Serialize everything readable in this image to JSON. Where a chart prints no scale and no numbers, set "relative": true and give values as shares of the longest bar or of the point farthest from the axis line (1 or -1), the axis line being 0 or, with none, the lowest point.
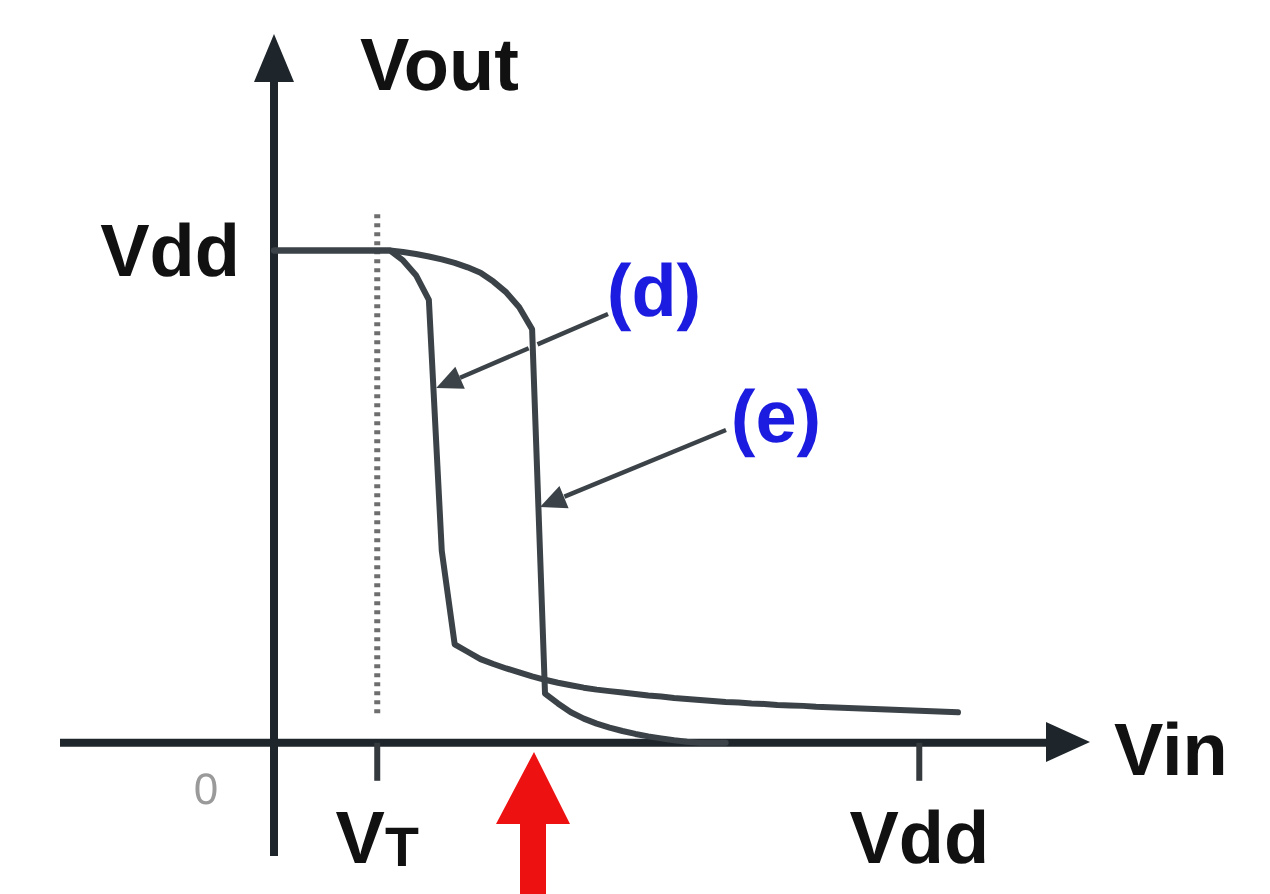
{
  "chart_data": {
    "type": "line",
    "relative": true,
    "xlabel": "Vin",
    "ylabel": "Vout",
    "categories": [
      null,
      null,
      null,
      null,
      null,
      null,
      null,
      null,
      "V$_{T}$",
      null,
      null,
      null,
      null,
      null,
      null,
      null,
      null,
      null,
      null,
      null,
      null,
      null,
      null,
      null,
      null,
      null,
      null,
      null,
      null,
      null,
      null,
      null,
      null,
      null,
      null,
      null,
      null,
      null,
      null,
      null,
      null,
      null,
      null,
      null,
      null,
      null,
      null,
      null,
      null,
      null,
      "Vdd",
      null,
      null,
      null
    ],
    "series": [
      {
        "name": "(d)",
        "color": "#3c4348",
        "values": [
          1,
          1,
          1,
          1,
          1,
          1,
          1,
          1,
          1,
          1,
          0.98,
          0.95,
          0.9,
          0.39,
          0.2,
          0.185,
          0.17,
          0.16,
          0.151,
          0.143,
          0.135,
          0.128,
          0.122,
          0.117,
          0.112,
          0.108,
          0.105,
          0.102,
          0.099,
          0.096,
          0.094,
          0.091,
          0.089,
          0.087,
          0.085,
          0.083,
          0.082,
          0.08,
          0.079,
          0.077,
          0.076,
          0.075,
          0.073,
          0.072,
          0.071,
          0.07,
          0.069,
          0.068,
          0.067,
          0.066,
          0.065,
          0.064,
          0.063,
          0.062
        ]
      },
      {
        "name": "(e)",
        "color": "#3c4348",
        "values": [
          1,
          1,
          1,
          1,
          1,
          1,
          1,
          1,
          1,
          1,
          0.997,
          0.993,
          0.988,
          0.982,
          0.975,
          0.966,
          0.955,
          0.937,
          0.915,
          0.885,
          0.84,
          0.1,
          0.08,
          0.062,
          0.049,
          0.039,
          0.031,
          0.024,
          0.018,
          0.013,
          0.009,
          0.005,
          0.002,
          0,
          0,
          0,
          null,
          null,
          null,
          null,
          null,
          null,
          null,
          null,
          null,
          null,
          null,
          null,
          null,
          null,
          null,
          null,
          null,
          null
        ]
      }
    ],
    "ref_lines": [
      {
        "axis": "x",
        "value": "V$_{T}$",
        "color": "#6e6e6e",
        "line_style": "dotted"
      }
    ],
    "annotations": [
      "Vdd",
      "0"
    ],
    "legend": "top",
    "marker": "none",
    "line_style": "solid"
  }
}
